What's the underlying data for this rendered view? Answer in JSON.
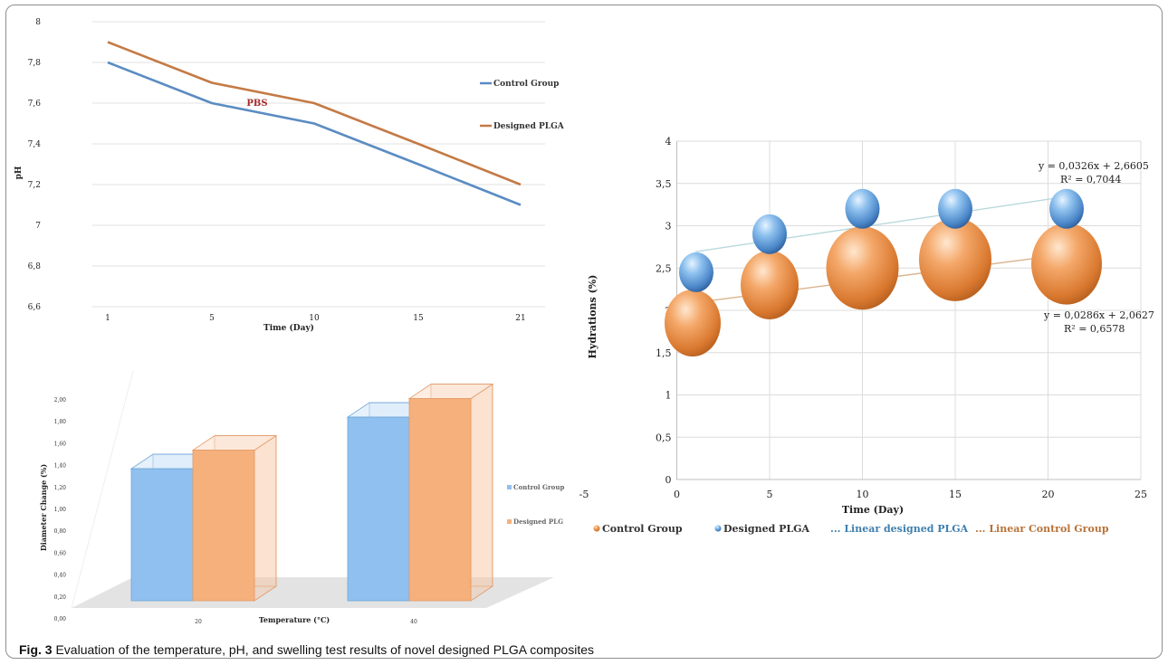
{
  "figure": {
    "caption_label": "Fig. 3",
    "caption_text": "Evaluation of the temperature, pH, and swelling test results of novel designed PLGA composites"
  },
  "chart_data": [
    {
      "type": "line",
      "x": [
        "1",
        "5",
        "10",
        "15",
        "21"
      ],
      "series": [
        {
          "name": "Control Group",
          "values": [
            7.8,
            7.6,
            7.5,
            7.3,
            7.1
          ],
          "color": "#5b8cc2"
        },
        {
          "name": "Designed PLGA",
          "values": [
            7.9,
            7.7,
            7.6,
            7.4,
            7.2
          ],
          "color": "#c47a45"
        }
      ],
      "ylim": [
        6.6,
        8.0
      ],
      "yticks": [
        "6,6",
        "6,8",
        "7",
        "7,2",
        "7,4",
        "7,6",
        "7,8",
        "8"
      ],
      "xlabel": "Time (Day)",
      "ylabel": "pH",
      "annotation": "PBS",
      "annotation_color": "#a52a2a",
      "grid": true,
      "legend": "right"
    },
    {
      "type": "bar",
      "categories": [
        "20",
        "40"
      ],
      "series": [
        {
          "name": "Control Group",
          "values": [
            1.28,
            1.78
          ],
          "color": "#8fc0ef"
        },
        {
          "name": "Designed PLGA",
          "values": [
            1.46,
            1.96
          ],
          "color": "#f6b07c"
        }
      ],
      "ylim": [
        0,
        2.0
      ],
      "yticks": [
        "0,00",
        "0,20",
        "0,40",
        "0,60",
        "0,80",
        "1,00",
        "1,20",
        "1,40",
        "1,60",
        "1,80",
        "2,00"
      ],
      "xlabel": "Temperature (°C)",
      "ylabel": "Diameter Change (%)",
      "legend_labels": [
        "Control Group",
        "Designed PLG"
      ],
      "legend": "right"
    },
    {
      "type": "scatter",
      "series": [
        {
          "name": "Control Group",
          "x": [
            1,
            5,
            10,
            15,
            21
          ],
          "y": [
            1.85,
            2.3,
            2.5,
            2.6,
            2.55
          ],
          "color": "#e8904a"
        },
        {
          "name": "Designed PLGA",
          "x": [
            1,
            5,
            10,
            15,
            21
          ],
          "y": [
            2.45,
            2.9,
            3.2,
            3.2,
            3.2
          ],
          "color": "#5a9ad8"
        }
      ],
      "trendlines": [
        {
          "name": "Linear designed PLGA",
          "slope": 0.0326,
          "intercept": 2.6605,
          "equation": "y = 0,0326x + 2,6605",
          "r2": "R² = 0,7044",
          "color": "#b9d9dd"
        },
        {
          "name": "Linear Control Group",
          "slope": 0.0286,
          "intercept": 2.0627,
          "equation": "y = 0,0286x + 2,0627",
          "r2": "R² = 0,6578",
          "color": "#d9b48d"
        }
      ],
      "xlim": [
        -5,
        25
      ],
      "ylim": [
        0,
        4
      ],
      "xticks": [
        "-5",
        "0",
        "5",
        "10",
        "15",
        "20",
        "25"
      ],
      "yticks": [
        "0",
        "0,5",
        "1",
        "1,5",
        "2",
        "2,5",
        "3",
        "3,5",
        "4"
      ],
      "xlabel": "Time (Day)",
      "ylabel": "Hydrations (%)",
      "legend_labels": [
        "Control Group",
        "Designed PLGA",
        "... Linear designed PLGA",
        "... Linear Control Group"
      ],
      "grid": true,
      "legend": "bottom"
    }
  ]
}
